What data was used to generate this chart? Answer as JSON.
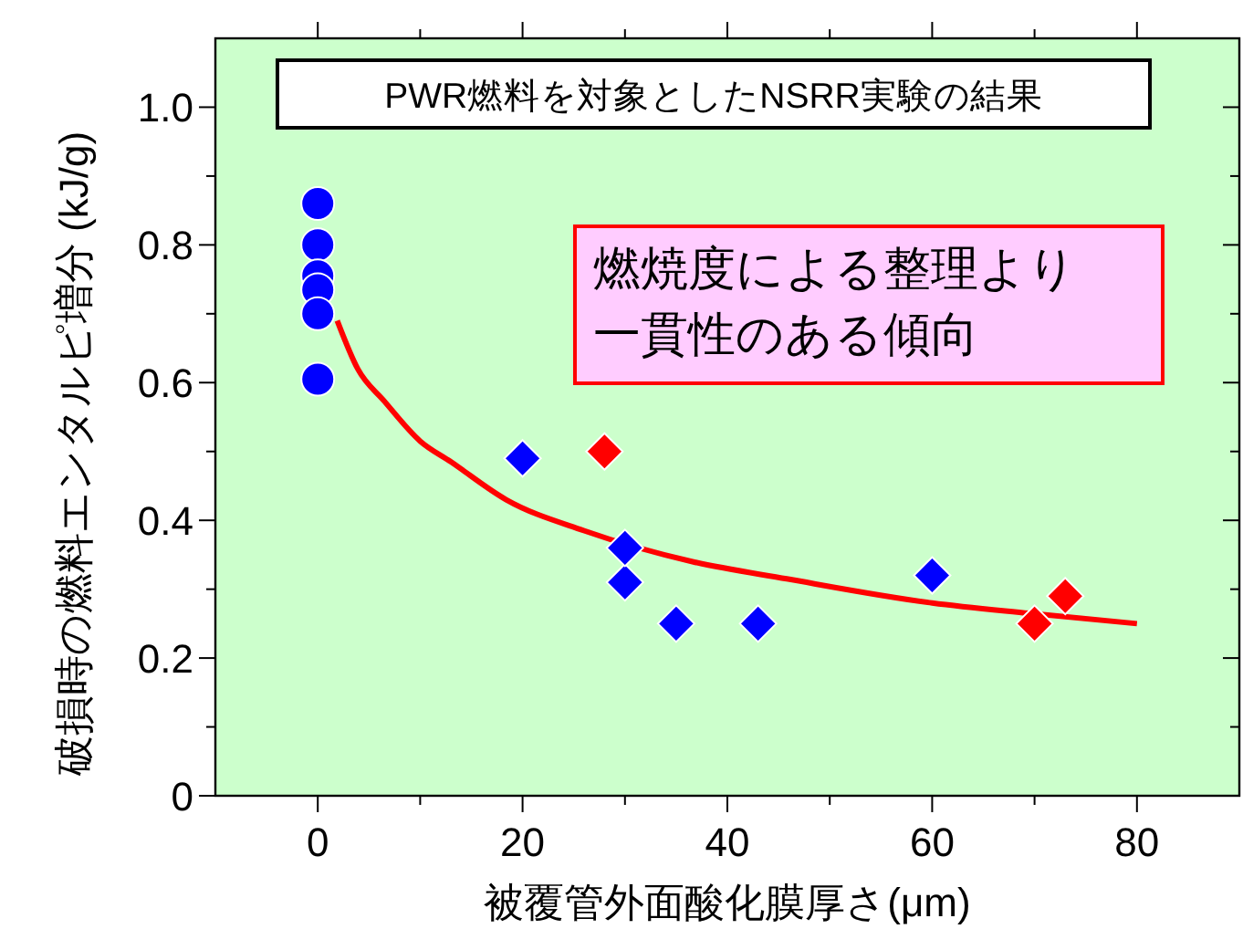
{
  "chart_data": {
    "type": "scatter",
    "xlabel": "被覆管外面酸化膜厚さ(μm)",
    "ylabel": "破損時の燃料エンタルピ増分 (kJ/g)",
    "xlim": [
      -10,
      90
    ],
    "xticks": [
      0,
      {
        "value": 10,
        "label": null
      },
      20,
      {
        "value": 30,
        "label": null
      },
      40,
      {
        "value": 50,
        "label": null
      },
      60,
      {
        "value": 70,
        "label": null
      },
      80
    ],
    "ylim": [
      0,
      1.1
    ],
    "yticks": [
      0,
      {
        "value": 0.1,
        "label": null
      },
      0.2,
      {
        "value": 0.3,
        "label": null
      },
      0.4,
      {
        "value": 0.5,
        "label": null
      },
      0.6,
      {
        "value": 0.7,
        "label": null
      },
      0.8,
      {
        "value": 0.9,
        "label": null
      },
      {
        "value": 1,
        "label": "1.0"
      }
    ],
    "grid": false,
    "annotations": [
      "PWR燃料を対象としたNSRR実験の結果",
      "燃焼度による整理より一貫性のある傾向"
    ],
    "series": [
      {
        "type": "line",
        "color": "#ff0000",
        "marker": "none",
        "line_style": "solid",
        "x": [
          1.9,
          3.9,
          6.5,
          10,
          13,
          18.4,
          26,
          36.6,
          45.8,
          60,
          69.5,
          80
        ],
        "values": [
          0.69,
          0.62,
          0.573,
          0.515,
          0.485,
          0.43,
          0.385,
          0.34,
          0.315,
          0.28,
          0.265,
          0.25
        ]
      },
      {
        "color": "#0000ff",
        "marker": "circle",
        "x": [
          0,
          0,
          0,
          0,
          0,
          0
        ],
        "values": [
          0.86,
          0.8,
          0.755,
          0.735,
          0.7,
          0.605
        ]
      },
      {
        "color": "#0000ff",
        "marker": "diamond",
        "x": [
          20,
          30
        ],
        "values": [
          0.49,
          0.31
        ]
      },
      {
        "color": "#0000ff",
        "marker": "diamond",
        "x": [
          30,
          35,
          43,
          60
        ],
        "values": [
          0.36,
          0.25,
          0.25,
          0.32
        ]
      },
      {
        "color": "#ff0000",
        "marker": "diamond",
        "x": [
          28,
          70,
          73
        ],
        "values": [
          0.5,
          0.25,
          0.29
        ]
      }
    ]
  }
}
